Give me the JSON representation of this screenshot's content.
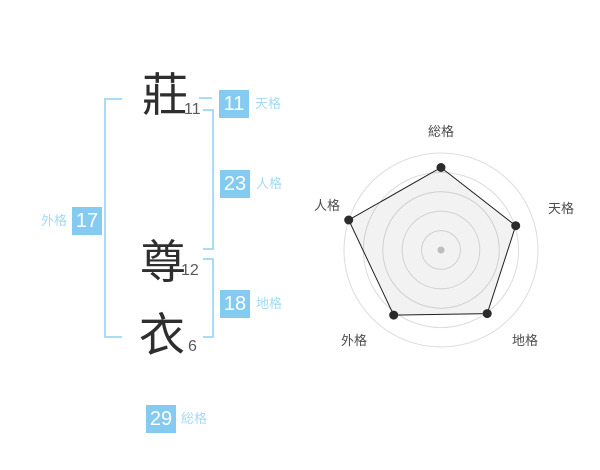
{
  "palette": {
    "accent_box_blue": "#85cbf1",
    "accent_label_blue": "#a6d9f5",
    "bracket_blue": "#a9dcf7",
    "kanji_color": "#2e2e2e",
    "strokes_color": "#595959"
  },
  "name": {
    "characters": [
      {
        "char": "莊",
        "strokes": "11"
      },
      {
        "char": "尊",
        "strokes": "12"
      },
      {
        "char": "衣",
        "strokes": "6"
      }
    ],
    "kaku_boxes": {
      "tenkaku": {
        "value": "11",
        "label": "天格"
      },
      "jinkaku": {
        "value": "23",
        "label": "人格"
      },
      "chikaku": {
        "value": "18",
        "label": "地格"
      },
      "gaikaku": {
        "value": "17",
        "label": "外格"
      },
      "soukaku": {
        "value": "29",
        "label": "総格"
      }
    }
  },
  "chart_data": {
    "type": "radar",
    "categories": [
      "総格",
      "天格",
      "地格",
      "外格",
      "人格"
    ],
    "values": [
      0.85,
      0.81,
      0.81,
      0.83,
      1.0
    ],
    "value_note": "vertex radius as fraction of outer ring",
    "kaku_numbers": {
      "総格": 29,
      "天格": 11,
      "地格": 18,
      "外格": 17,
      "人格": 23
    },
    "rings": 5,
    "grid": "concentric-circles",
    "legend": false,
    "colors": {
      "ring": "#dcdcdc",
      "polygon_stroke": "#1f1f1f",
      "polygon_fill": "rgba(0,0,0,0.05)",
      "vertex_dot": "#2b2b2b",
      "center_dot": "#bdbdbd",
      "label": "#4d4d4d"
    }
  }
}
